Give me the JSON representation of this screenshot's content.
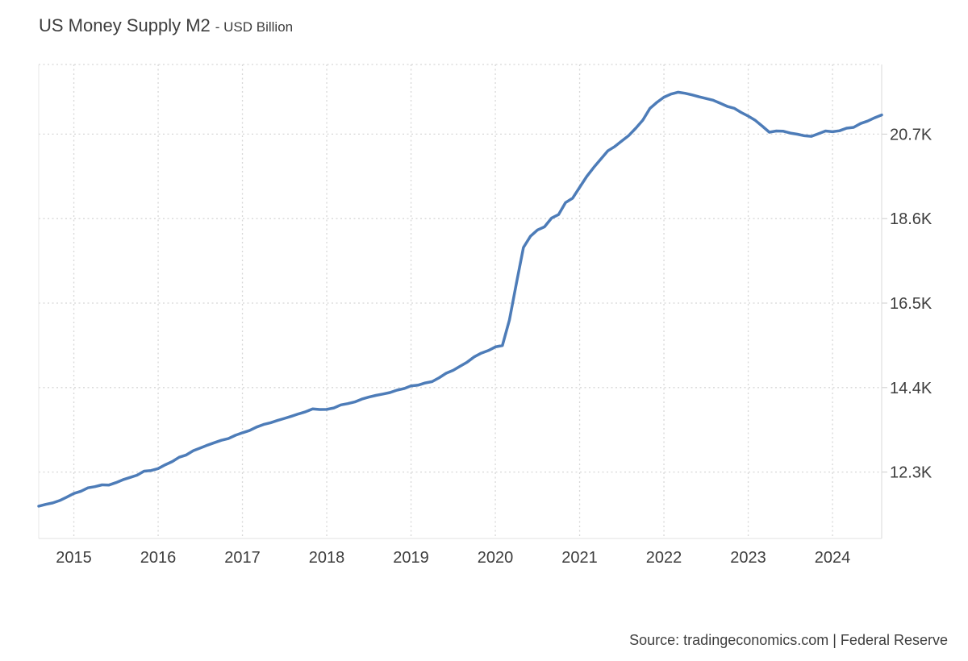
{
  "header": {
    "title": "US Money Supply M2",
    "subtitle": "- USD Billion"
  },
  "footer": {
    "source": "Source: tradingeconomics.com | Federal Reserve"
  },
  "chart_data": {
    "type": "line",
    "title": "US Money Supply M2",
    "subtitle": "USD Billion",
    "unit": "USD Billion",
    "frequency": "monthly",
    "start_period": "2014-08",
    "end_period": "2024-08",
    "x_tick_labels": [
      "2015",
      "2016",
      "2017",
      "2018",
      "2019",
      "2020",
      "2021",
      "2022",
      "2023",
      "2024"
    ],
    "y_tick_labels": [
      "20.7K",
      "18.6K",
      "16.5K",
      "14.4K",
      "12.3K"
    ],
    "y_tick_values": [
      20700,
      18600,
      16500,
      14400,
      12300
    ],
    "xlim_decimal_years": [
      2014.5833,
      2024.5833
    ],
    "ylim": [
      10650,
      22430
    ],
    "grid": "dotted",
    "legend": "none",
    "line_color": "#4d7cb8",
    "grid_color": "#d7d7d7",
    "axis_text_color": "#3d3d3d",
    "series": [
      {
        "name": "US Money Supply M2",
        "values": [
          11453,
          11497,
          11534,
          11593,
          11678,
          11768,
          11823,
          11909,
          11938,
          11982,
          11978,
          12038,
          12111,
          12166,
          12223,
          12322,
          12338,
          12386,
          12481,
          12562,
          12670,
          12725,
          12832,
          12898,
          12967,
          13031,
          13091,
          13132,
          13214,
          13277,
          13333,
          13418,
          13483,
          13526,
          13583,
          13636,
          13690,
          13748,
          13799,
          13872,
          13855,
          13857,
          13893,
          13969,
          14001,
          14043,
          14113,
          14163,
          14207,
          14240,
          14276,
          14337,
          14374,
          14442,
          14461,
          14514,
          14549,
          14645,
          14756,
          14830,
          14932,
          15034,
          15164,
          15255,
          15319,
          15410,
          15446,
          16080,
          16994,
          17882,
          18160,
          18318,
          18395,
          18611,
          18700,
          18999,
          19107,
          19375,
          19645,
          19870,
          20077,
          20283,
          20391,
          20528,
          20665,
          20848,
          21047,
          21337,
          21489,
          21616,
          21694,
          21740,
          21715,
          21675,
          21626,
          21585,
          21543,
          21468,
          21391,
          21342,
          21237,
          21147,
          21041,
          20898,
          20748,
          20778,
          20771,
          20726,
          20698,
          20658,
          20644,
          20710,
          20778,
          20759,
          20784,
          20847,
          20867,
          20963,
          21024,
          21106,
          21175
        ]
      }
    ]
  }
}
